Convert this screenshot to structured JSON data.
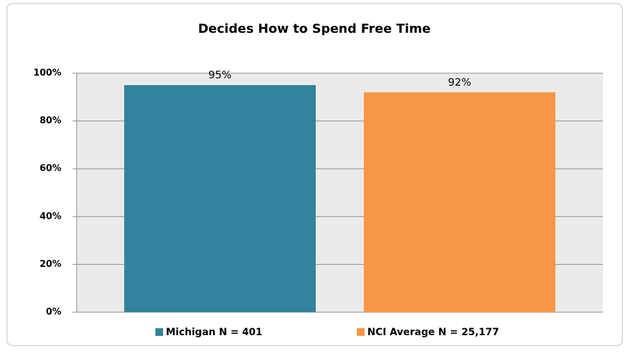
{
  "chart_data": {
    "type": "bar",
    "title": "Decides How to Spend Free Time",
    "categories": [
      null
    ],
    "series": [
      {
        "name": "Michigan N = 401",
        "color": "#31849b",
        "values": [
          95
        ],
        "value_labels": [
          "95%"
        ]
      },
      {
        "name": "NCI Average N = 25,177",
        "color": "#f79646",
        "values": [
          92
        ],
        "value_labels": [
          "92%"
        ]
      }
    ],
    "ylim": [
      0,
      100
    ],
    "yticks": [
      {
        "value": 0,
        "label": "0%"
      },
      {
        "value": 20,
        "label": "20%"
      },
      {
        "value": 40,
        "label": "40%"
      },
      {
        "value": 60,
        "label": "60%"
      },
      {
        "value": 80,
        "label": "80%"
      },
      {
        "value": 100,
        "label": "100%"
      }
    ],
    "grid": true,
    "legend": "bottom"
  }
}
